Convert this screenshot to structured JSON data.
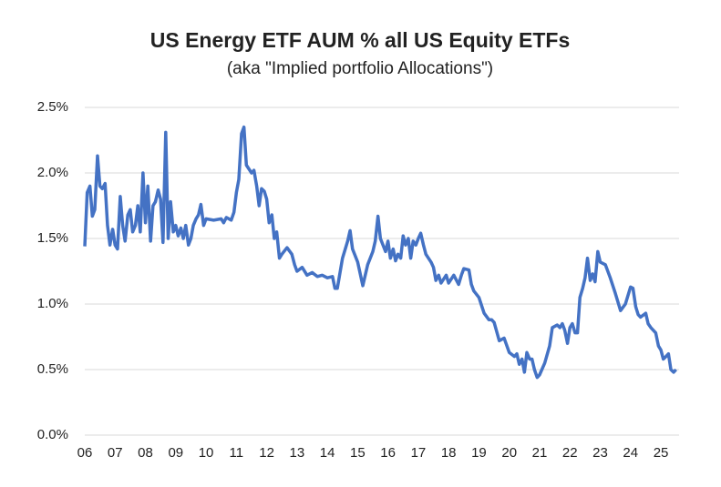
{
  "chart_data": {
    "type": "line",
    "title": "US Energy ETF AUM % all US Equity ETFs",
    "subtitle": "(aka \"Implied portfolio Allocations\")",
    "xlim": [
      2006,
      2025.6
    ],
    "xticks": [
      {
        "value": 2006,
        "label": "06"
      },
      {
        "value": 2007,
        "label": "07"
      },
      {
        "value": 2008,
        "label": "08"
      },
      {
        "value": 2009,
        "label": "09"
      },
      {
        "value": 2010,
        "label": "10"
      },
      {
        "value": 2011,
        "label": "11"
      },
      {
        "value": 2012,
        "label": "12"
      },
      {
        "value": 2013,
        "label": "13"
      },
      {
        "value": 2014,
        "label": "14"
      },
      {
        "value": 2015,
        "label": "15"
      },
      {
        "value": 2016,
        "label": "16"
      },
      {
        "value": 2017,
        "label": "17"
      },
      {
        "value": 2018,
        "label": "18"
      },
      {
        "value": 2019,
        "label": "19"
      },
      {
        "value": 2020,
        "label": "20"
      },
      {
        "value": 2021,
        "label": "21"
      },
      {
        "value": 2022,
        "label": "22"
      },
      {
        "value": 2023,
        "label": "23"
      },
      {
        "value": 2024,
        "label": "24"
      },
      {
        "value": 2025,
        "label": "25"
      }
    ],
    "ylim": [
      0,
      2.5
    ],
    "yticks": [
      {
        "value": 0,
        "label": "0.0%"
      },
      {
        "value": 0.5,
        "label": "0.5%"
      },
      {
        "value": 1,
        "label": "1.0%"
      },
      {
        "value": 1.5,
        "label": "1.5%"
      },
      {
        "value": 2,
        "label": "2.0%"
      },
      {
        "value": 2.5,
        "label": "2.5%"
      }
    ],
    "grid": true,
    "x": [
      2006.0,
      2006.08,
      2006.17,
      2006.25,
      2006.33,
      2006.42,
      2006.5,
      2006.58,
      2006.67,
      2006.75,
      2006.83,
      2006.92,
      2007.0,
      2007.08,
      2007.17,
      2007.25,
      2007.33,
      2007.42,
      2007.5,
      2007.58,
      2007.67,
      2007.75,
      2007.83,
      2007.92,
      2008.0,
      2008.08,
      2008.17,
      2008.25,
      2008.33,
      2008.42,
      2008.5,
      2008.58,
      2008.67,
      2008.75,
      2008.83,
      2008.92,
      2009.0,
      2009.08,
      2009.17,
      2009.25,
      2009.33,
      2009.42,
      2009.5,
      2009.58,
      2009.67,
      2009.75,
      2009.83,
      2009.92,
      2010.0,
      2010.25,
      2010.5,
      2010.58,
      2010.67,
      2010.83,
      2010.92,
      2011.0,
      2011.08,
      2011.17,
      2011.25,
      2011.33,
      2011.5,
      2011.58,
      2011.67,
      2011.75,
      2011.83,
      2011.92,
      2012.0,
      2012.08,
      2012.17,
      2012.25,
      2012.33,
      2012.42,
      2012.5,
      2012.67,
      2012.83,
      2012.92,
      2013.0,
      2013.17,
      2013.33,
      2013.5,
      2013.67,
      2013.83,
      2014.0,
      2014.17,
      2014.25,
      2014.33,
      2014.5,
      2014.67,
      2014.75,
      2014.83,
      2015.0,
      2015.17,
      2015.33,
      2015.5,
      2015.58,
      2015.67,
      2015.75,
      2015.92,
      2016.0,
      2016.08,
      2016.17,
      2016.25,
      2016.33,
      2016.42,
      2016.5,
      2016.58,
      2016.67,
      2016.75,
      2016.83,
      2016.92,
      2017.0,
      2017.08,
      2017.17,
      2017.25,
      2017.42,
      2017.5,
      2017.58,
      2017.67,
      2017.75,
      2017.92,
      2018.0,
      2018.17,
      2018.33,
      2018.42,
      2018.5,
      2018.67,
      2018.75,
      2018.83,
      2019.0,
      2019.17,
      2019.33,
      2019.42,
      2019.5,
      2019.67,
      2019.83,
      2020.0,
      2020.17,
      2020.25,
      2020.33,
      2020.42,
      2020.5,
      2020.58,
      2020.67,
      2020.75,
      2020.83,
      2020.92,
      2021.0,
      2021.17,
      2021.33,
      2021.42,
      2021.58,
      2021.67,
      2021.75,
      2021.83,
      2021.92,
      2022.0,
      2022.08,
      2022.17,
      2022.25,
      2022.33,
      2022.42,
      2022.5,
      2022.58,
      2022.67,
      2022.75,
      2022.83,
      2022.92,
      2023.0,
      2023.17,
      2023.33,
      2023.5,
      2023.67,
      2023.83,
      2024.0,
      2024.08,
      2024.17,
      2024.25,
      2024.33,
      2024.5,
      2024.58,
      2024.67,
      2024.83,
      2024.92,
      2025.0,
      2025.08,
      2025.17,
      2025.25,
      2025.33,
      2025.42,
      2025.5
    ],
    "series": [
      {
        "color": "#4472c4",
        "values": [
          1.44,
          1.85,
          1.9,
          1.67,
          1.72,
          2.13,
          1.9,
          1.88,
          1.92,
          1.6,
          1.45,
          1.57,
          1.45,
          1.42,
          1.82,
          1.6,
          1.48,
          1.68,
          1.72,
          1.55,
          1.6,
          1.75,
          1.55,
          2.0,
          1.62,
          1.9,
          1.48,
          1.75,
          1.78,
          1.87,
          1.8,
          1.47,
          2.31,
          1.5,
          1.78,
          1.55,
          1.6,
          1.52,
          1.58,
          1.5,
          1.6,
          1.45,
          1.5,
          1.6,
          1.65,
          1.68,
          1.76,
          1.6,
          1.65,
          1.64,
          1.65,
          1.62,
          1.66,
          1.64,
          1.7,
          1.85,
          1.95,
          2.3,
          2.35,
          2.06,
          2.0,
          2.02,
          1.9,
          1.75,
          1.88,
          1.86,
          1.8,
          1.62,
          1.68,
          1.5,
          1.55,
          1.35,
          1.38,
          1.43,
          1.38,
          1.3,
          1.25,
          1.28,
          1.22,
          1.24,
          1.21,
          1.22,
          1.2,
          1.21,
          1.12,
          1.12,
          1.35,
          1.48,
          1.56,
          1.42,
          1.32,
          1.14,
          1.3,
          1.4,
          1.48,
          1.67,
          1.5,
          1.4,
          1.48,
          1.35,
          1.42,
          1.33,
          1.38,
          1.35,
          1.52,
          1.45,
          1.5,
          1.35,
          1.48,
          1.45,
          1.5,
          1.54,
          1.45,
          1.38,
          1.32,
          1.28,
          1.18,
          1.22,
          1.16,
          1.22,
          1.16,
          1.22,
          1.15,
          1.22,
          1.27,
          1.26,
          1.15,
          1.1,
          1.05,
          0.93,
          0.88,
          0.88,
          0.86,
          0.72,
          0.74,
          0.63,
          0.6,
          0.62,
          0.54,
          0.58,
          0.48,
          0.63,
          0.58,
          0.58,
          0.5,
          0.44,
          0.46,
          0.55,
          0.68,
          0.82,
          0.84,
          0.82,
          0.85,
          0.8,
          0.7,
          0.82,
          0.85,
          0.78,
          0.78,
          1.05,
          1.12,
          1.2,
          1.35,
          1.18,
          1.23,
          1.17,
          1.4,
          1.32,
          1.3,
          1.2,
          1.08,
          0.95,
          1.0,
          1.13,
          1.12,
          0.98,
          0.92,
          0.9,
          0.93,
          0.85,
          0.82,
          0.78,
          0.68,
          0.65,
          0.58,
          0.6,
          0.62,
          0.5,
          0.48,
          0.5
        ]
      }
    ]
  }
}
